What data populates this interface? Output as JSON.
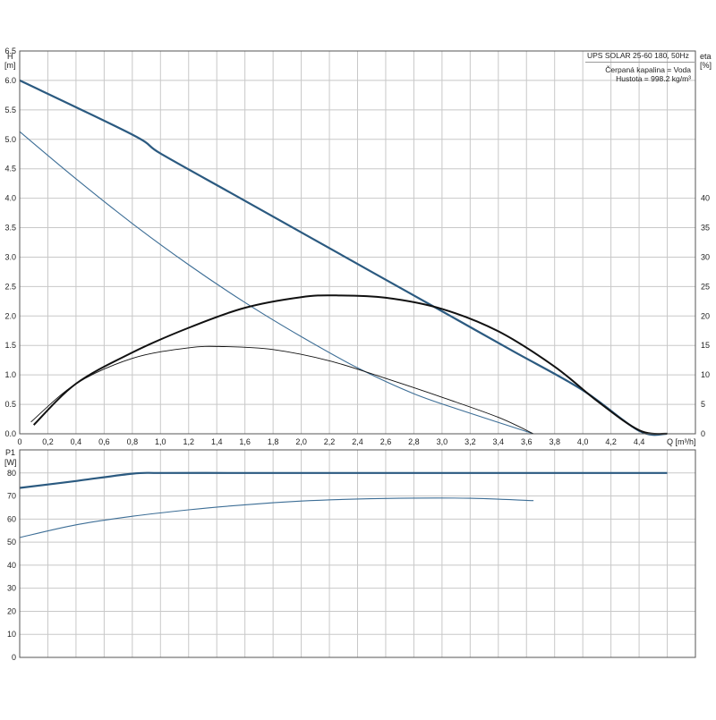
{
  "info_box": {
    "title": "UPS SOLAR 25-60 180, 50Hz",
    "fluid": "Čerpaná kapalina = Voda",
    "density": "Hustota = 998.2 kg/m³"
  },
  "colors": {
    "grid": "#c8c8c8",
    "frame": "#555555",
    "blue_curve": "#2b5a80",
    "thin_blue_curve": "#3d6e96",
    "black_curve": "#111111"
  },
  "chart_data": [
    {
      "type": "line",
      "name_panel": "head",
      "xlabel": "Q [m³/h]",
      "ylabel_symbol": "H",
      "ylabel_unit": "[m]",
      "y2label_symbol": "eta",
      "y2label_unit": "[%]",
      "xlim": [
        0,
        4.8
      ],
      "ylim": [
        0,
        6.5
      ],
      "y2lim": [
        0,
        65
      ],
      "x_ticks": [
        "0",
        "0,2",
        "0,4",
        "0,6",
        "0,8",
        "1,0",
        "1,2",
        "1,4",
        "1,6",
        "1,8",
        "2,0",
        "2,2",
        "2,4",
        "2,6",
        "2,8",
        "3,0",
        "3,2",
        "3,4",
        "3,6",
        "3,8",
        "4,0",
        "4,2",
        "4,4"
      ],
      "y_ticks": [
        "0.0",
        "0.5",
        "1.0",
        "1.5",
        "2.0",
        "2.5",
        "3.0",
        "3.5",
        "4.0",
        "4.5",
        "5.0",
        "5.5",
        "6.0",
        "6.5"
      ],
      "y2_ticks": [
        "0",
        "5",
        "10",
        "15",
        "20",
        "25",
        "30",
        "35",
        "40"
      ],
      "grid": true,
      "series": [
        {
          "axis": "y",
          "style": "thick_blue",
          "x": [
            0,
            0.8,
            1.0,
            1.5,
            2.0,
            2.5,
            3.0,
            3.5,
            4.0,
            4.4,
            4.6
          ],
          "y": [
            6.0,
            5.08,
            4.76,
            4.09,
            3.42,
            2.75,
            2.08,
            1.41,
            0.74,
            0.05,
            0
          ]
        },
        {
          "axis": "y",
          "style": "thin_blue",
          "x": [
            0,
            0.4,
            0.8,
            1.2,
            1.6,
            2.0,
            2.4,
            2.8,
            3.2,
            3.65
          ],
          "y": [
            5.13,
            4.33,
            3.57,
            2.87,
            2.23,
            1.65,
            1.12,
            0.68,
            0.35,
            0
          ]
        },
        {
          "axis": "y2",
          "style": "thick_black",
          "x": [
            0.1,
            0.4,
            0.8,
            1.2,
            1.6,
            2.0,
            2.25,
            2.6,
            3.0,
            3.4,
            3.8,
            4.1,
            4.4,
            4.6
          ],
          "y": [
            1.5,
            8.5,
            13.8,
            18.0,
            21.4,
            23.2,
            23.5,
            23.1,
            21.2,
            17.4,
            11.4,
            5.6,
            0.6,
            0
          ]
        },
        {
          "axis": "y2",
          "style": "thin_black",
          "x": [
            0.08,
            0.4,
            0.8,
            1.2,
            1.45,
            1.8,
            2.2,
            2.6,
            3.0,
            3.4,
            3.65
          ],
          "y": [
            2.0,
            8.5,
            12.8,
            14.6,
            14.8,
            14.3,
            12.4,
            9.4,
            6.2,
            2.8,
            0
          ]
        }
      ]
    },
    {
      "type": "line",
      "name_panel": "power",
      "ylabel_symbol": "P1",
      "ylabel_unit": "[W]",
      "xlim": [
        0,
        4.8
      ],
      "ylim": [
        0,
        90
      ],
      "y_ticks": [
        "0",
        "10",
        "20",
        "30",
        "40",
        "50",
        "60",
        "70",
        "80"
      ],
      "grid": true,
      "series": [
        {
          "style": "thick_blue",
          "x": [
            0,
            0.4,
            0.8,
            1.0,
            1.5,
            2.0,
            3.0,
            4.0,
            4.6
          ],
          "y": [
            73.5,
            76.5,
            79.7,
            80,
            80,
            80,
            80,
            80,
            80
          ]
        },
        {
          "style": "thin_blue",
          "x": [
            0,
            0.4,
            0.8,
            1.2,
            1.6,
            2.0,
            2.4,
            2.8,
            3.2,
            3.65
          ],
          "y": [
            52,
            57.5,
            61.2,
            64,
            66.2,
            67.8,
            68.7,
            69.1,
            69.0,
            68.0
          ]
        }
      ]
    }
  ]
}
